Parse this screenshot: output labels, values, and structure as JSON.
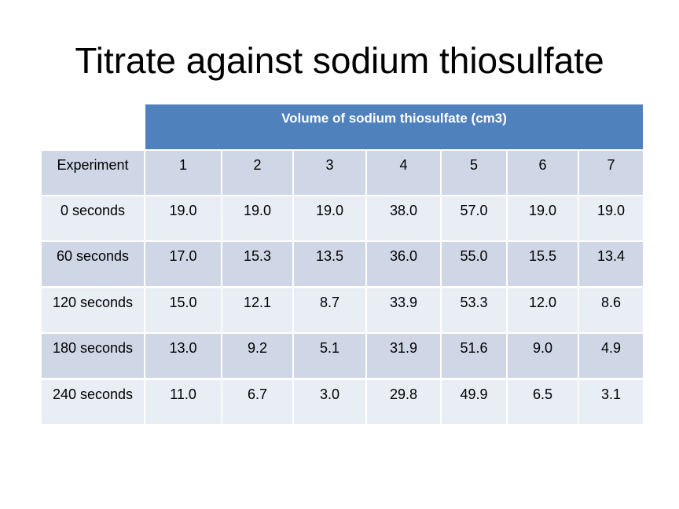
{
  "title": "Titrate against sodium thiosulfate",
  "table": {
    "header": "Volume of sodium thiosulfate (cm3)",
    "rows": [
      [
        "Experiment",
        "1",
        "2",
        "3",
        "4",
        "5",
        "6",
        "7"
      ],
      [
        "0 seconds",
        "19.0",
        "19.0",
        "19.0",
        "38.0",
        "57.0",
        "19.0",
        "19.0"
      ],
      [
        "60 seconds",
        "17.0",
        "15.3",
        "13.5",
        "36.0",
        "55.0",
        "15.5",
        "13.4"
      ],
      [
        "120 seconds",
        "15.0",
        "12.1",
        "8.7",
        "33.9",
        "53.3",
        "12.0",
        "8.6"
      ],
      [
        "180 seconds",
        "13.0",
        "9.2",
        "5.1",
        "31.9",
        "51.6",
        "9.0",
        "4.9"
      ],
      [
        "240 seconds",
        "11.0",
        "6.7",
        "3.0",
        "29.8",
        "49.9",
        "6.5",
        "3.1"
      ]
    ]
  }
}
